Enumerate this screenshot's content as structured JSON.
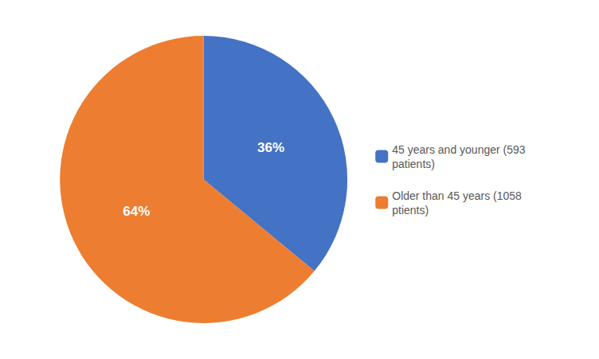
{
  "chart_data": {
    "type": "pie",
    "categories": [
      "45 years and younger (593\npatients)",
      "Older than 45 years (1058\nptients)"
    ],
    "values": [
      36,
      64
    ],
    "value_labels": [
      "36%",
      "64%"
    ],
    "colors": [
      "#4472C4",
      "#ED7D31"
    ],
    "data_labels": true,
    "legend": "right"
  }
}
